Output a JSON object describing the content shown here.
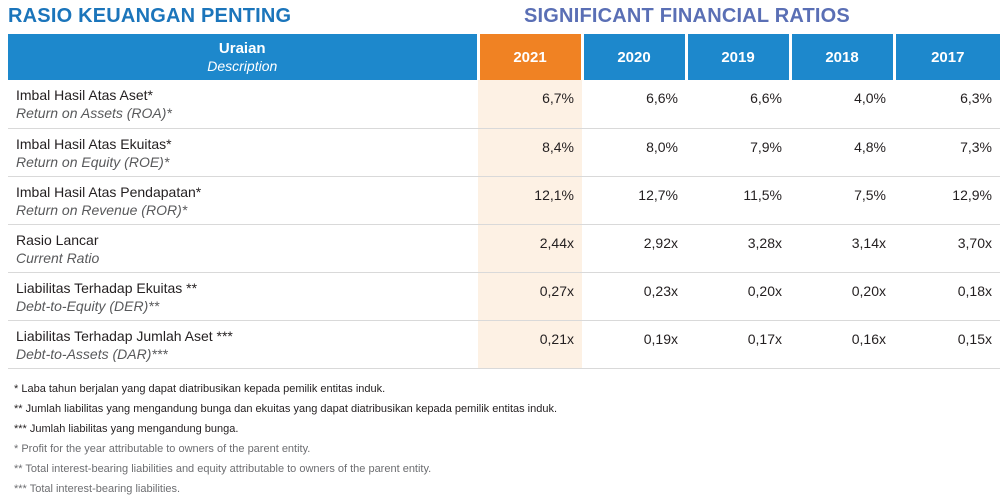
{
  "titles": {
    "indonesian": "RASIO KEUANGAN PENTING",
    "english": "SIGNIFICANT FINANCIAL RATIOS"
  },
  "colors": {
    "header_blue": "#1d88cc",
    "highlight_orange": "#f08223",
    "highlight_column_tint": "#fdf1e4"
  },
  "table": {
    "header": {
      "label": "Uraian",
      "sublabel": "Description",
      "years": [
        "2021",
        "2020",
        "2019",
        "2018",
        "2017"
      ]
    },
    "rows": [
      {
        "id": "Imbal Hasil Atas Aset*",
        "en": "Return on Assets (ROA)*",
        "values": [
          "6,7%",
          "6,6%",
          "6,6%",
          "4,0%",
          "6,3%"
        ]
      },
      {
        "id": "Imbal Hasil Atas Ekuitas*",
        "en": "Return on Equity (ROE)*",
        "values": [
          "8,4%",
          "8,0%",
          "7,9%",
          "4,8%",
          "7,3%"
        ]
      },
      {
        "id": "Imbal Hasil Atas Pendapatan*",
        "en": "Return on Revenue (ROR)*",
        "values": [
          "12,1%",
          "12,7%",
          "11,5%",
          "7,5%",
          "12,9%"
        ]
      },
      {
        "id": "Rasio Lancar",
        "en": "Current Ratio",
        "values": [
          "2,44x",
          "2,92x",
          "3,28x",
          "3,14x",
          "3,70x"
        ]
      },
      {
        "id": "Liabilitas Terhadap Ekuitas **",
        "en": "Debt-to-Equity (DER)**",
        "values": [
          "0,27x",
          "0,23x",
          "0,20x",
          "0,20x",
          "0,18x"
        ]
      },
      {
        "id": "Liabilitas Terhadap Jumlah Aset ***",
        "en": "Debt-to-Assets (DAR)***",
        "values": [
          "0,21x",
          "0,19x",
          "0,17x",
          "0,16x",
          "0,15x"
        ]
      }
    ]
  },
  "notes": {
    "id": [
      " * Laba tahun berjalan yang dapat diatribusikan kepada pemilik entitas induk.",
      "** Jumlah liabilitas yang mengandung bunga dan ekuitas yang dapat diatribusikan kepada pemilik entitas induk.",
      "*** Jumlah liabilitas yang mengandung bunga."
    ],
    "en": [
      "* Profit for the year attributable to owners of the parent entity.",
      "** Total interest-bearing liabilities and equity attributable to owners of the parent entity.",
      "*** Total interest-bearing liabilities."
    ]
  }
}
